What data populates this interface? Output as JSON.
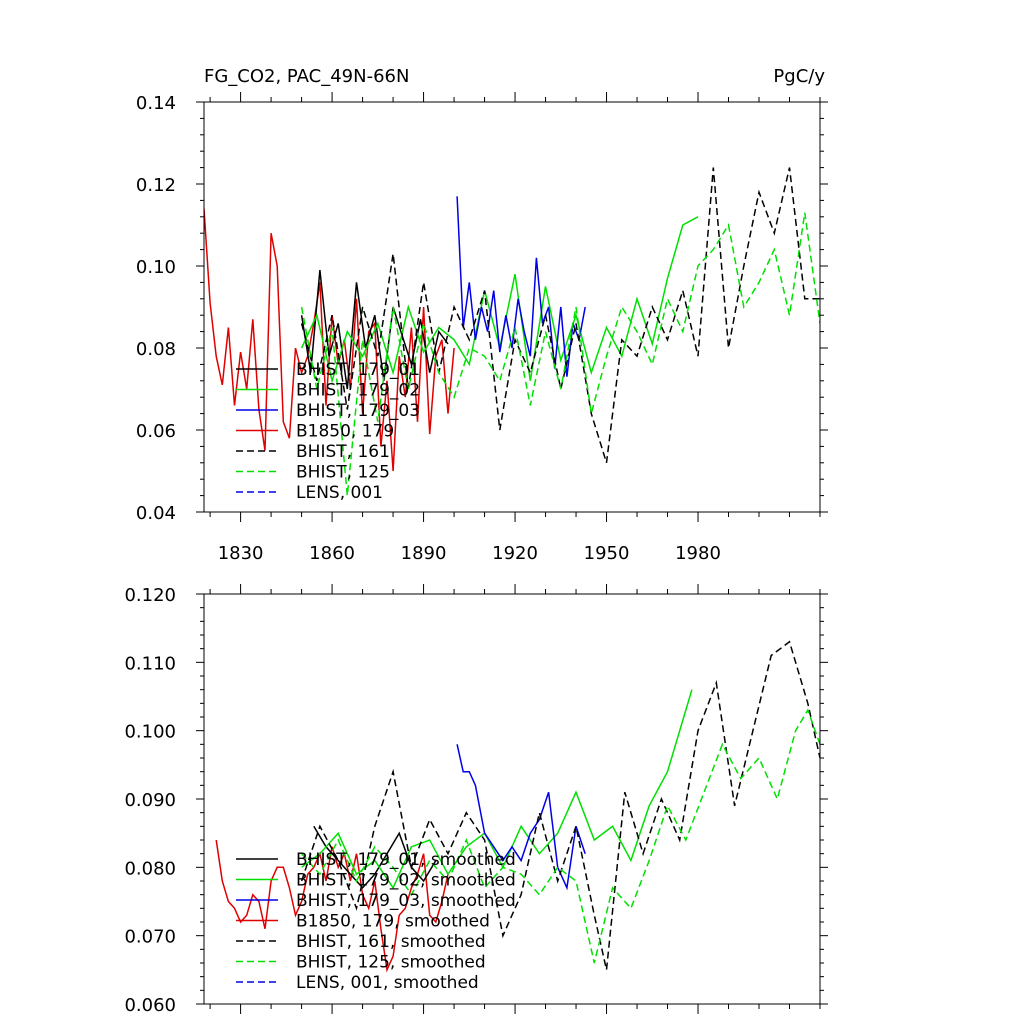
{
  "header": {
    "left_title": "FG_CO2, PAC_49N-66N",
    "right_title": "PgC/y"
  },
  "colors": {
    "black": "#000000",
    "green": "#00e000",
    "blue": "#0000e6",
    "red": "#e00000"
  },
  "chart_data": [
    {
      "type": "line",
      "title": "FG_CO2, PAC_49N-66N",
      "units": "PgC/y",
      "xlim": [
        1818,
        2020
      ],
      "ylim": [
        0.04,
        0.14
      ],
      "xticks": [
        1830,
        1860,
        1890,
        1920,
        1950,
        1980
      ],
      "xtick_labels": [
        "1830",
        "1860",
        "1890",
        "1920",
        "1950",
        "1980"
      ],
      "yticks": [
        0.04,
        0.06,
        0.08,
        0.1,
        0.12,
        0.14
      ],
      "ytick_labels": [
        "0.04",
        "0.06",
        "0.08",
        "0.10",
        "0.12",
        "0.14"
      ],
      "legend": [
        "BHIST, 179_01",
        "BHIST, 179_02",
        "BHIST, 179_03",
        "B1850, 179",
        "BHIST, 161",
        "BHIST, 125",
        "LENS, 001"
      ],
      "series": [
        {
          "name": "B1850, 179",
          "color": "red",
          "dash": false,
          "x": [
            1818,
            1820,
            1822,
            1824,
            1826,
            1828,
            1830,
            1832,
            1834,
            1836,
            1838,
            1840,
            1842,
            1844,
            1846,
            1848,
            1850,
            1852,
            1854,
            1856,
            1858,
            1860,
            1862,
            1864,
            1866,
            1868,
            1870,
            1872,
            1874,
            1876,
            1878,
            1880,
            1882,
            1884,
            1886,
            1888,
            1890,
            1892,
            1894,
            1896,
            1898,
            1900
          ],
          "y": [
            0.114,
            0.091,
            0.078,
            0.071,
            0.085,
            0.066,
            0.079,
            0.07,
            0.087,
            0.065,
            0.055,
            0.108,
            0.1,
            0.062,
            0.058,
            0.08,
            0.074,
            0.078,
            0.086,
            0.096,
            0.066,
            0.088,
            0.076,
            0.082,
            0.07,
            0.092,
            0.064,
            0.084,
            0.086,
            0.056,
            0.072,
            0.05,
            0.078,
            0.068,
            0.085,
            0.062,
            0.09,
            0.059,
            0.078,
            0.082,
            0.064,
            0.08
          ]
        },
        {
          "name": "BHIST, 179_01",
          "color": "black",
          "dash": false,
          "x": [
            1850,
            1853,
            1856,
            1859,
            1862,
            1865,
            1868,
            1871,
            1874,
            1877,
            1880,
            1883,
            1886,
            1889,
            1892,
            1895,
            1898
          ],
          "y": [
            0.088,
            0.074,
            0.099,
            0.078,
            0.086,
            0.07,
            0.096,
            0.08,
            0.088,
            0.072,
            0.09,
            0.083,
            0.076,
            0.087,
            0.074,
            0.084,
            0.081
          ]
        },
        {
          "name": "BHIST, 179_02",
          "color": "green",
          "dash": false,
          "x": [
            1850,
            1855,
            1860,
            1865,
            1870,
            1875,
            1880,
            1885,
            1890,
            1895,
            1900,
            1905,
            1910,
            1915,
            1920,
            1925,
            1930,
            1935,
            1940,
            1945,
            1950,
            1955,
            1960,
            1965,
            1970,
            1975,
            1980
          ],
          "y": [
            0.08,
            0.088,
            0.072,
            0.084,
            0.078,
            0.086,
            0.074,
            0.09,
            0.079,
            0.085,
            0.082,
            0.076,
            0.094,
            0.08,
            0.098,
            0.072,
            0.095,
            0.077,
            0.088,
            0.074,
            0.085,
            0.078,
            0.092,
            0.081,
            0.097,
            0.11,
            0.112
          ]
        },
        {
          "name": "BHIST, 179_03",
          "color": "blue",
          "dash": false,
          "x": [
            1901,
            1903,
            1905,
            1907,
            1909,
            1911,
            1913,
            1915,
            1917,
            1919,
            1921,
            1923,
            1925,
            1927,
            1929,
            1931,
            1933,
            1935,
            1937,
            1939,
            1941,
            1943
          ],
          "y": [
            0.117,
            0.085,
            0.096,
            0.082,
            0.09,
            0.084,
            0.094,
            0.079,
            0.088,
            0.08,
            0.092,
            0.084,
            0.078,
            0.102,
            0.086,
            0.09,
            0.075,
            0.09,
            0.073,
            0.086,
            0.082,
            0.09
          ]
        },
        {
          "name": "BHIST, 161",
          "color": "black",
          "dash": true,
          "x": [
            1850,
            1855,
            1860,
            1865,
            1870,
            1875,
            1880,
            1885,
            1890,
            1895,
            1900,
            1905,
            1910,
            1915,
            1920,
            1925,
            1930,
            1935,
            1940,
            1945,
            1950,
            1955,
            1960,
            1965,
            1970,
            1975,
            1980,
            1985,
            1990,
            1995,
            2000,
            2005,
            2010,
            2015,
            2020
          ],
          "y": [
            0.086,
            0.072,
            0.088,
            0.065,
            0.09,
            0.078,
            0.103,
            0.07,
            0.096,
            0.074,
            0.09,
            0.082,
            0.094,
            0.06,
            0.082,
            0.074,
            0.088,
            0.07,
            0.086,
            0.064,
            0.052,
            0.082,
            0.078,
            0.09,
            0.082,
            0.094,
            0.078,
            0.124,
            0.08,
            0.1,
            0.118,
            0.108,
            0.124,
            0.092,
            0.092
          ]
        },
        {
          "name": "BHIST, 125",
          "color": "green",
          "dash": true,
          "x": [
            1850,
            1855,
            1860,
            1865,
            1870,
            1875,
            1880,
            1885,
            1890,
            1895,
            1900,
            1905,
            1910,
            1915,
            1920,
            1925,
            1930,
            1935,
            1940,
            1945,
            1950,
            1955,
            1960,
            1965,
            1970,
            1975,
            1980,
            1985,
            1990,
            1995,
            2000,
            2005,
            2010,
            2015,
            2020
          ],
          "y": [
            0.09,
            0.07,
            0.085,
            0.044,
            0.082,
            0.062,
            0.09,
            0.07,
            0.086,
            0.074,
            0.068,
            0.08,
            0.078,
            0.072,
            0.085,
            0.066,
            0.084,
            0.07,
            0.09,
            0.064,
            0.078,
            0.09,
            0.084,
            0.076,
            0.092,
            0.084,
            0.1,
            0.104,
            0.11,
            0.09,
            0.096,
            0.104,
            0.088,
            0.113,
            0.086
          ]
        },
        {
          "name": "LENS, 001",
          "color": "blue",
          "dash": true,
          "x": [],
          "y": []
        }
      ]
    },
    {
      "type": "line",
      "xlim": [
        1818,
        2020
      ],
      "ylim": [
        0.06,
        0.12
      ],
      "xticks": [
        1830,
        1860,
        1890,
        1920,
        1950,
        1980
      ],
      "yticks": [
        0.06,
        0.07,
        0.08,
        0.09,
        0.1,
        0.11,
        0.12
      ],
      "ytick_labels": [
        "0.060",
        "0.070",
        "0.080",
        "0.090",
        "0.100",
        "0.110",
        "0.120"
      ],
      "legend": [
        "BHIST, 179_01, smoothed",
        "BHIST, 179_02, smoothed",
        "BHIST, 179_03, smoothed",
        "B1850, 179, smoothed",
        "BHIST, 161, smoothed",
        "BHIST, 125, smoothed",
        "LENS, 001, smoothed"
      ],
      "series": [
        {
          "name": "B1850, 179, smoothed",
          "color": "red",
          "dash": false,
          "x": [
            1822,
            1824,
            1826,
            1828,
            1830,
            1832,
            1834,
            1836,
            1838,
            1840,
            1842,
            1844,
            1846,
            1848,
            1850,
            1852,
            1854,
            1856,
            1858,
            1860,
            1862,
            1864,
            1866,
            1868,
            1870,
            1872,
            1874,
            1876,
            1878,
            1880,
            1882,
            1884,
            1886,
            1888,
            1890,
            1892,
            1894,
            1896,
            1898
          ],
          "y": [
            0.084,
            0.078,
            0.075,
            0.074,
            0.072,
            0.073,
            0.076,
            0.075,
            0.071,
            0.078,
            0.08,
            0.08,
            0.077,
            0.073,
            0.075,
            0.079,
            0.08,
            0.082,
            0.078,
            0.083,
            0.08,
            0.082,
            0.078,
            0.082,
            0.076,
            0.074,
            0.078,
            0.071,
            0.065,
            0.067,
            0.073,
            0.074,
            0.077,
            0.079,
            0.082,
            0.073,
            0.072,
            0.075,
            0.079
          ]
        },
        {
          "name": "BHIST, 179_01, smoothed",
          "color": "black",
          "dash": false,
          "x": [
            1854,
            1858,
            1862,
            1866,
            1870,
            1874,
            1878,
            1882,
            1886,
            1890,
            1894
          ],
          "y": [
            0.086,
            0.083,
            0.081,
            0.079,
            0.077,
            0.079,
            0.082,
            0.085,
            0.08,
            0.078,
            0.081
          ]
        },
        {
          "name": "BHIST, 179_02, smoothed",
          "color": "green",
          "dash": false,
          "x": [
            1850,
            1856,
            1862,
            1868,
            1874,
            1880,
            1886,
            1892,
            1898,
            1904,
            1910,
            1916,
            1922,
            1928,
            1934,
            1940,
            1946,
            1952,
            1958,
            1964,
            1970,
            1974,
            1978
          ],
          "y": [
            0.08,
            0.082,
            0.085,
            0.079,
            0.081,
            0.077,
            0.083,
            0.084,
            0.079,
            0.083,
            0.085,
            0.08,
            0.086,
            0.082,
            0.085,
            0.091,
            0.084,
            0.086,
            0.081,
            0.089,
            0.094,
            0.1,
            0.106
          ]
        },
        {
          "name": "BHIST, 179_03, smoothed",
          "color": "blue",
          "dash": false,
          "x": [
            1901,
            1903,
            1905,
            1907,
            1910,
            1913,
            1916,
            1919,
            1922,
            1925,
            1928,
            1931,
            1934,
            1937,
            1940,
            1943
          ],
          "y": [
            0.098,
            0.094,
            0.094,
            0.092,
            0.085,
            0.083,
            0.081,
            0.083,
            0.081,
            0.085,
            0.087,
            0.091,
            0.08,
            0.077,
            0.086,
            0.082
          ]
        },
        {
          "name": "BHIST, 161, smoothed",
          "color": "black",
          "dash": true,
          "x": [
            1850,
            1856,
            1862,
            1868,
            1874,
            1880,
            1886,
            1892,
            1898,
            1904,
            1910,
            1916,
            1922,
            1928,
            1934,
            1940,
            1946,
            1950,
            1956,
            1962,
            1968,
            1974,
            1980,
            1986,
            1992,
            1998,
            2004,
            2010,
            2016,
            2020
          ],
          "y": [
            0.078,
            0.086,
            0.081,
            0.074,
            0.086,
            0.094,
            0.08,
            0.087,
            0.082,
            0.088,
            0.084,
            0.07,
            0.076,
            0.088,
            0.078,
            0.086,
            0.073,
            0.065,
            0.091,
            0.082,
            0.09,
            0.084,
            0.1,
            0.107,
            0.089,
            0.1,
            0.111,
            0.113,
            0.104,
            0.096
          ]
        },
        {
          "name": "BHIST, 125, smoothed",
          "color": "green",
          "dash": true,
          "x": [
            1850,
            1856,
            1862,
            1868,
            1874,
            1880,
            1886,
            1892,
            1898,
            1904,
            1910,
            1916,
            1922,
            1928,
            1934,
            1940,
            1946,
            1952,
            1958,
            1964,
            1970,
            1976,
            1982,
            1988,
            1994,
            2000,
            2006,
            2012,
            2016,
            2020
          ],
          "y": [
            0.082,
            0.079,
            0.084,
            0.078,
            0.083,
            0.08,
            0.076,
            0.081,
            0.078,
            0.084,
            0.077,
            0.08,
            0.079,
            0.076,
            0.08,
            0.078,
            0.066,
            0.077,
            0.074,
            0.081,
            0.089,
            0.084,
            0.091,
            0.098,
            0.093,
            0.096,
            0.09,
            0.1,
            0.103,
            0.098
          ]
        },
        {
          "name": "LENS, 001, smoothed",
          "color": "blue",
          "dash": true,
          "x": [],
          "y": []
        }
      ]
    }
  ]
}
